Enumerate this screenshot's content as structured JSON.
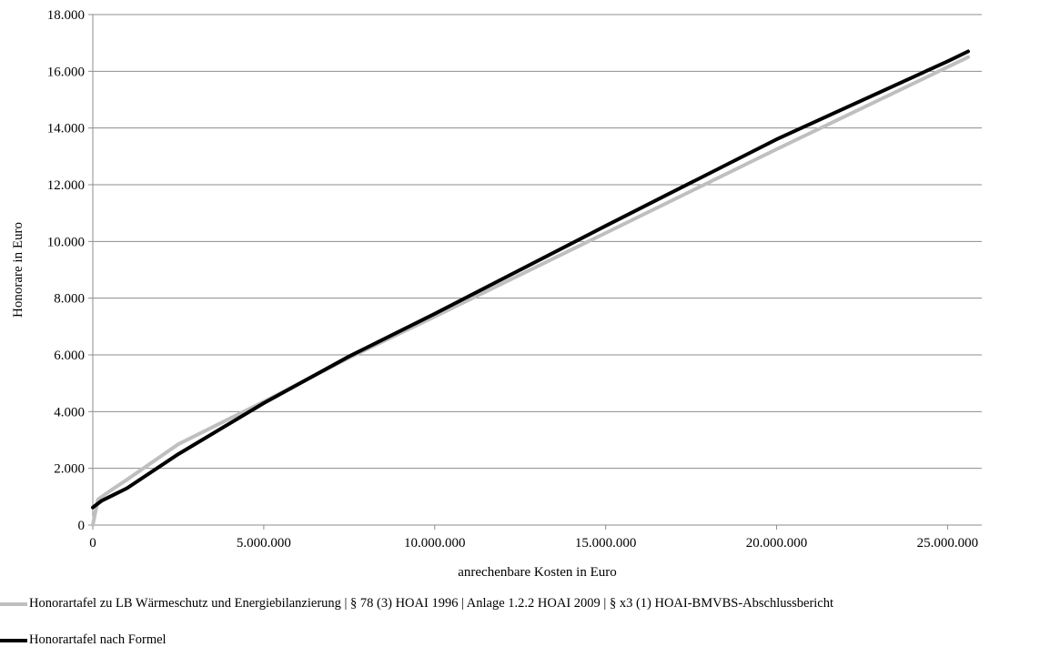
{
  "chart_data": {
    "type": "line",
    "title": "",
    "xlabel": "anrechenbare Kosten in Euro",
    "ylabel": "Honorare in Euro",
    "xlim": [
      0,
      26000000
    ],
    "ylim": [
      0,
      18000
    ],
    "xticks": [
      0,
      5000000,
      10000000,
      15000000,
      20000000,
      25000000
    ],
    "xtick_labels": [
      "0",
      "5.000.000",
      "10.000.000",
      "15.000.000",
      "20.000.000",
      "25.000.000"
    ],
    "yticks": [
      0,
      2000,
      4000,
      6000,
      8000,
      10000,
      12000,
      14000,
      16000,
      18000
    ],
    "ytick_labels": [
      "0",
      "2.000",
      "4.000",
      "6.000",
      "8.000",
      "10.000",
      "12.000",
      "14.000",
      "16.000",
      "18.000"
    ],
    "grid": "horizontal",
    "legend_position": "bottom",
    "series": [
      {
        "name": "Honorartafel zu LB Wärmeschutz und Energiebilanzierung | § 78 (3) HOAI 1996 | Anlage 1.2.2 HOAI 2009 | § x3 (1) HOAI-BMVBS-Abschlussbericht",
        "color": "#bfbfbf",
        "x": [
          0,
          150000,
          500000,
          1000000,
          2500000,
          5000000,
          7500000,
          10000000,
          15000000,
          20000000,
          25000000,
          25600000
        ],
        "y": [
          0,
          900,
          1200,
          1600,
          2850,
          4350,
          5900,
          7350,
          10300,
          13250,
          16150,
          16500
        ]
      },
      {
        "name": "Honorartafel nach Formel",
        "color": "#000000",
        "x": [
          0,
          250000,
          500000,
          1000000,
          2500000,
          5000000,
          7500000,
          10000000,
          15000000,
          20000000,
          25000000,
          25600000
        ],
        "y": [
          620,
          850,
          1000,
          1300,
          2500,
          4300,
          5950,
          7450,
          10550,
          13600,
          16350,
          16700
        ]
      }
    ]
  }
}
